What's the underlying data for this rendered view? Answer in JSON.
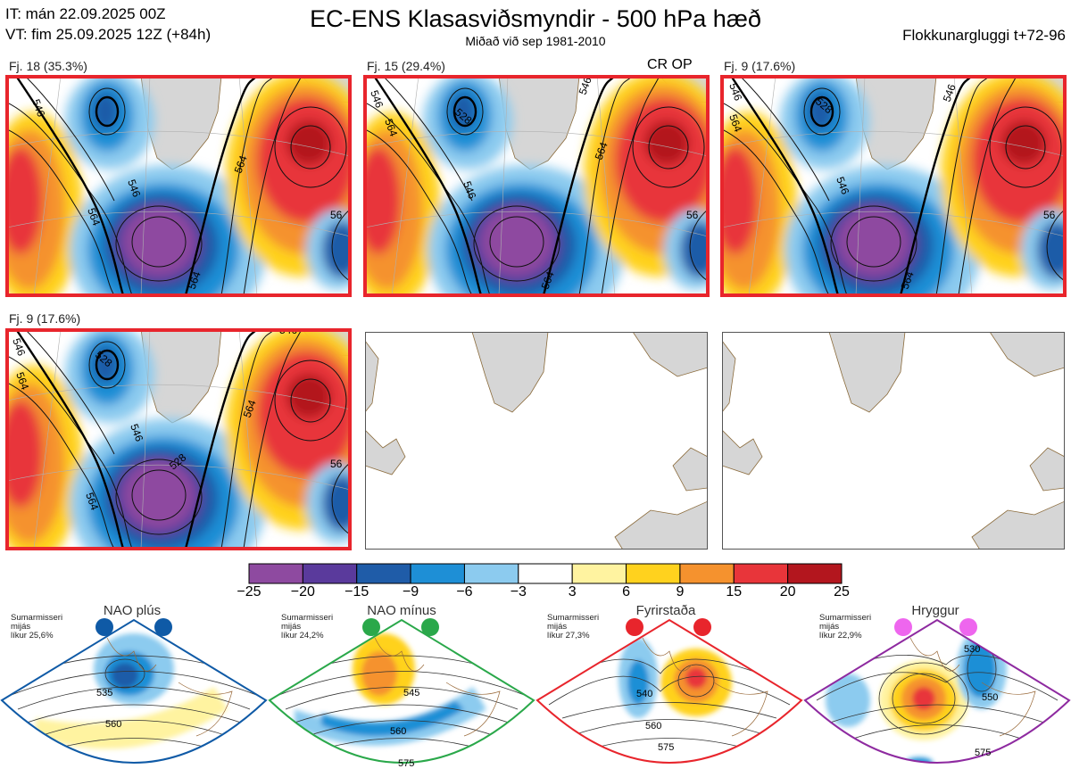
{
  "header": {
    "it_line": "IT: mán 22.09.2025 00Z",
    "vt_line": "VT: fim 25.09.2025 12Z  (+84h)",
    "title": "EC-ENS Klasasviðsmyndir - 500 hPa hæð",
    "subtitle": "Miðað við sep 1981-2010",
    "window": "Flokkunargluggi t+72-96"
  },
  "panels": [
    {
      "caption": "Fj. 18 (35.3%)",
      "highlighted": true,
      "tag": "",
      "contour_labels": [
        "546",
        "564",
        "546",
        "564",
        "56",
        "564"
      ]
    },
    {
      "caption": "Fj. 15 (29.4%)",
      "highlighted": true,
      "tag": "CR OP",
      "contour_labels": [
        "546",
        "528",
        "546",
        "564",
        "546",
        "564",
        "56",
        "564"
      ]
    },
    {
      "caption": "Fj. 9 (17.6%)",
      "highlighted": true,
      "tag": "",
      "contour_labels": [
        "546",
        "528",
        "546",
        "564",
        "546",
        "56",
        "564"
      ]
    },
    {
      "caption": "Fj. 9 (17.6%)",
      "highlighted": true,
      "tag": "",
      "contour_labels": [
        "546",
        "528",
        "546",
        "564",
        "546",
        "564",
        "56",
        "528",
        "564"
      ]
    },
    {
      "caption": "",
      "highlighted": false,
      "tag": "",
      "contour_labels": []
    },
    {
      "caption": "",
      "highlighted": false,
      "tag": "",
      "contour_labels": []
    }
  ],
  "colorbar": {
    "colors": [
      "#8e4aa0",
      "#5a3a9c",
      "#1f5ca8",
      "#1e8fd6",
      "#8ccbef",
      "#ffffff",
      "#fff3a0",
      "#ffd21e",
      "#f5922e",
      "#e8353a",
      "#b3161e"
    ],
    "labels": [
      "−25",
      "−20",
      "−15",
      "−9",
      "−6",
      "−3",
      "3",
      "6",
      "9",
      "15",
      "20",
      "25"
    ]
  },
  "regimes": [
    {
      "name": "NAO plús",
      "info": [
        "Sumarmisseri",
        "mijás",
        "líkur 25,6%"
      ],
      "color": "#0f5aa6",
      "contour_labels": [
        "535",
        "560"
      ]
    },
    {
      "name": "NAO mínus",
      "info": [
        "Sumarmisseri",
        "mijás",
        "líkur 24,2%"
      ],
      "color": "#2aa84a",
      "contour_labels": [
        "545",
        "560",
        "575"
      ]
    },
    {
      "name": "Fyrirstaða",
      "info": [
        "Sumarmisseri",
        "mijás",
        "líkur 27,3%"
      ],
      "color": "#e8252c",
      "contour_labels": [
        "540",
        "560",
        "575"
      ]
    },
    {
      "name": "Hryggur",
      "info": [
        "Sumarmisseri",
        "mijás",
        "líkur 22,9%"
      ],
      "color": "#8e2aa0",
      "contour_labels": [
        "530",
        "550",
        "575"
      ]
    }
  ]
}
